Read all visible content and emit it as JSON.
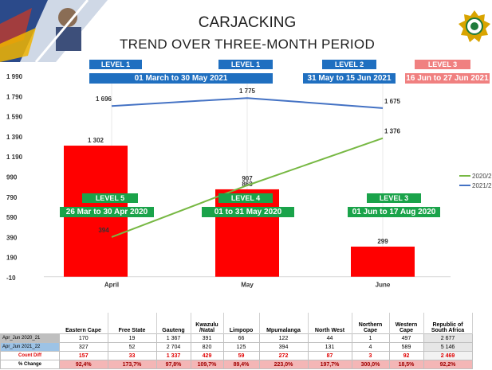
{
  "header": {
    "title_line1": "CARJACKING",
    "title_line2": "TREND OVER THREE-MONTH PERIOD"
  },
  "period_2021": [
    {
      "level": "LEVEL 1",
      "dates": "01 March to 30 May 2021",
      "color": "#1f6fc0"
    },
    {
      "level": "LEVEL 1"
    },
    {
      "level": "LEVEL 2",
      "dates": "31 May to 15 Jun 2021",
      "color": "#1f6fc0"
    },
    {
      "level": "LEVEL 3",
      "dates": "16 Jun to 27 Jun 2021",
      "color": "#f08080"
    }
  ],
  "period_2020": [
    {
      "level": "LEVEL 5",
      "dates": "26 Mar to 30 Apr 2020"
    },
    {
      "level": "LEVEL 4",
      "dates": "01 to 31 May 2020"
    },
    {
      "level": "LEVEL 3",
      "dates": "01 Jun to 17 Aug 2020"
    }
  ],
  "chart_data": {
    "type": "line",
    "categories": [
      "April",
      "May",
      "June"
    ],
    "series": [
      {
        "name": "2020/2",
        "kind": "line",
        "color": "#77b843",
        "values": [
          394,
          907,
          1376
        ],
        "labels": [
          "394",
          "907",
          "1 376"
        ]
      },
      {
        "name": "2021/2",
        "kind": "line",
        "color": "#4472c4",
        "values": [
          1696,
          1775,
          1675
        ],
        "labels": [
          "1 696",
          "1 775",
          "1 675"
        ]
      },
      {
        "name": "",
        "kind": "bar",
        "color": "#ff0000",
        "values": [
          1302,
          868,
          299
        ],
        "labels": [
          "1 302",
          "868",
          "299"
        ]
      }
    ],
    "yticks": [
      -10,
      190,
      390,
      590,
      790,
      990,
      1190,
      1390,
      1590,
      1790,
      1990
    ],
    "ytick_labels": [
      "-10",
      "190",
      "390",
      "590",
      "790",
      "990",
      "1 190",
      "1 390",
      "1 590",
      "1 790",
      "1 990"
    ],
    "ylim": [
      -10,
      1990
    ],
    "grid": false,
    "legend_position": "right"
  },
  "table": {
    "columns": [
      "Eastern Cape",
      "Free State",
      "Gauteng",
      "Kwazulu /Natal",
      "Limpopo",
      "Mpumalanga",
      "North West",
      "Northern Cape",
      "Western Cape",
      "Republic of South Africa"
    ],
    "rows": [
      {
        "label": "Apr_Jun 2020_21",
        "values": [
          "170",
          "19",
          "1 367",
          "391",
          "66",
          "122",
          "44",
          "1",
          "497",
          "2 677"
        ]
      },
      {
        "label": "Apr_Jun 2021_22",
        "values": [
          "327",
          "52",
          "2 704",
          "820",
          "125",
          "394",
          "131",
          "4",
          "589",
          "5 146"
        ]
      },
      {
        "label": "Count Diff",
        "values": [
          "157",
          "33",
          "1 337",
          "429",
          "59",
          "272",
          "87",
          "3",
          "92",
          "2 469"
        ]
      },
      {
        "label": "% Change",
        "values": [
          "92,4%",
          "173,7%",
          "97,8%",
          "109,7%",
          "89,4%",
          "223,0%",
          "197,7%",
          "300,0%",
          "18,5%",
          "92,2%"
        ]
      }
    ]
  }
}
